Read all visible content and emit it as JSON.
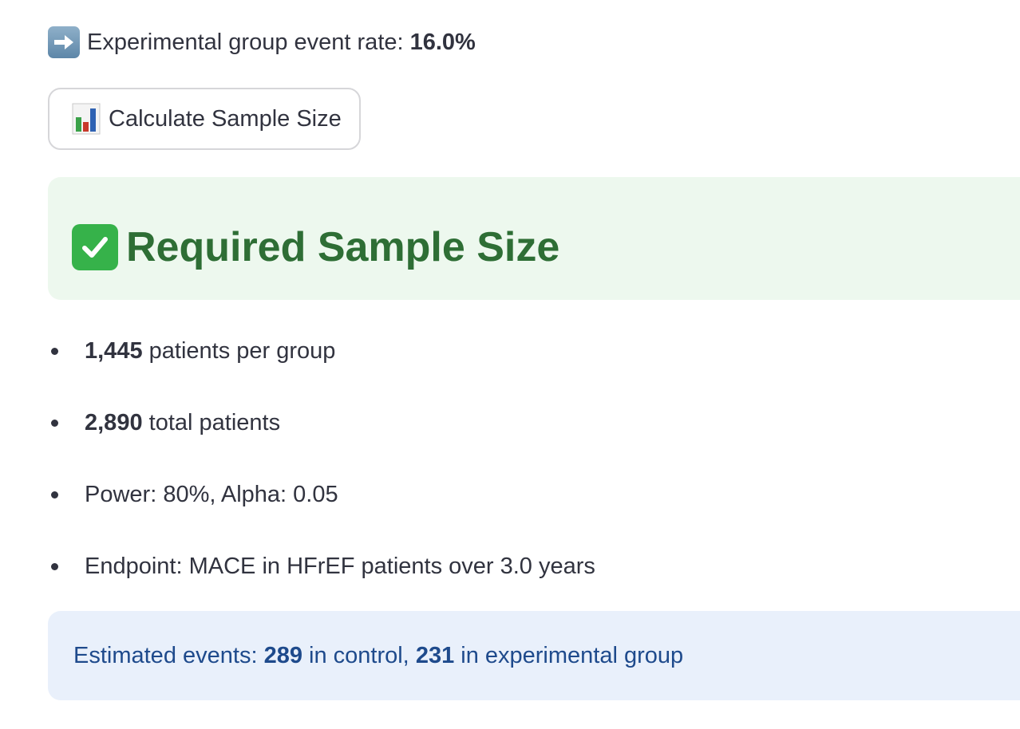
{
  "rate_line": {
    "label": "Experimental group event rate:",
    "value": "16.0%",
    "icon": "right-arrow-icon"
  },
  "calculate_button": {
    "label": "Calculate Sample Size",
    "icon": "bar-chart-icon"
  },
  "success": {
    "title": "Required Sample Size",
    "icon": "check-mark-icon",
    "background": "#edf8ee",
    "color": "#2e6e35"
  },
  "results": [
    {
      "bold": "1,445",
      "text": "patients per group"
    },
    {
      "bold": "2,890",
      "text": "total patients"
    },
    {
      "bold": "",
      "text": "Power: 80%, Alpha: 0.05"
    },
    {
      "bold": "",
      "text": "Endpoint: MACE in HFrEF patients over 3.0 years"
    }
  ],
  "info": {
    "prefix": "Estimated events:",
    "control_count": "289",
    "control_label": "in control,",
    "experimental_count": "231",
    "experimental_label": "in experimental group",
    "background": "#e9f0fb",
    "color": "#1e4a8c"
  }
}
